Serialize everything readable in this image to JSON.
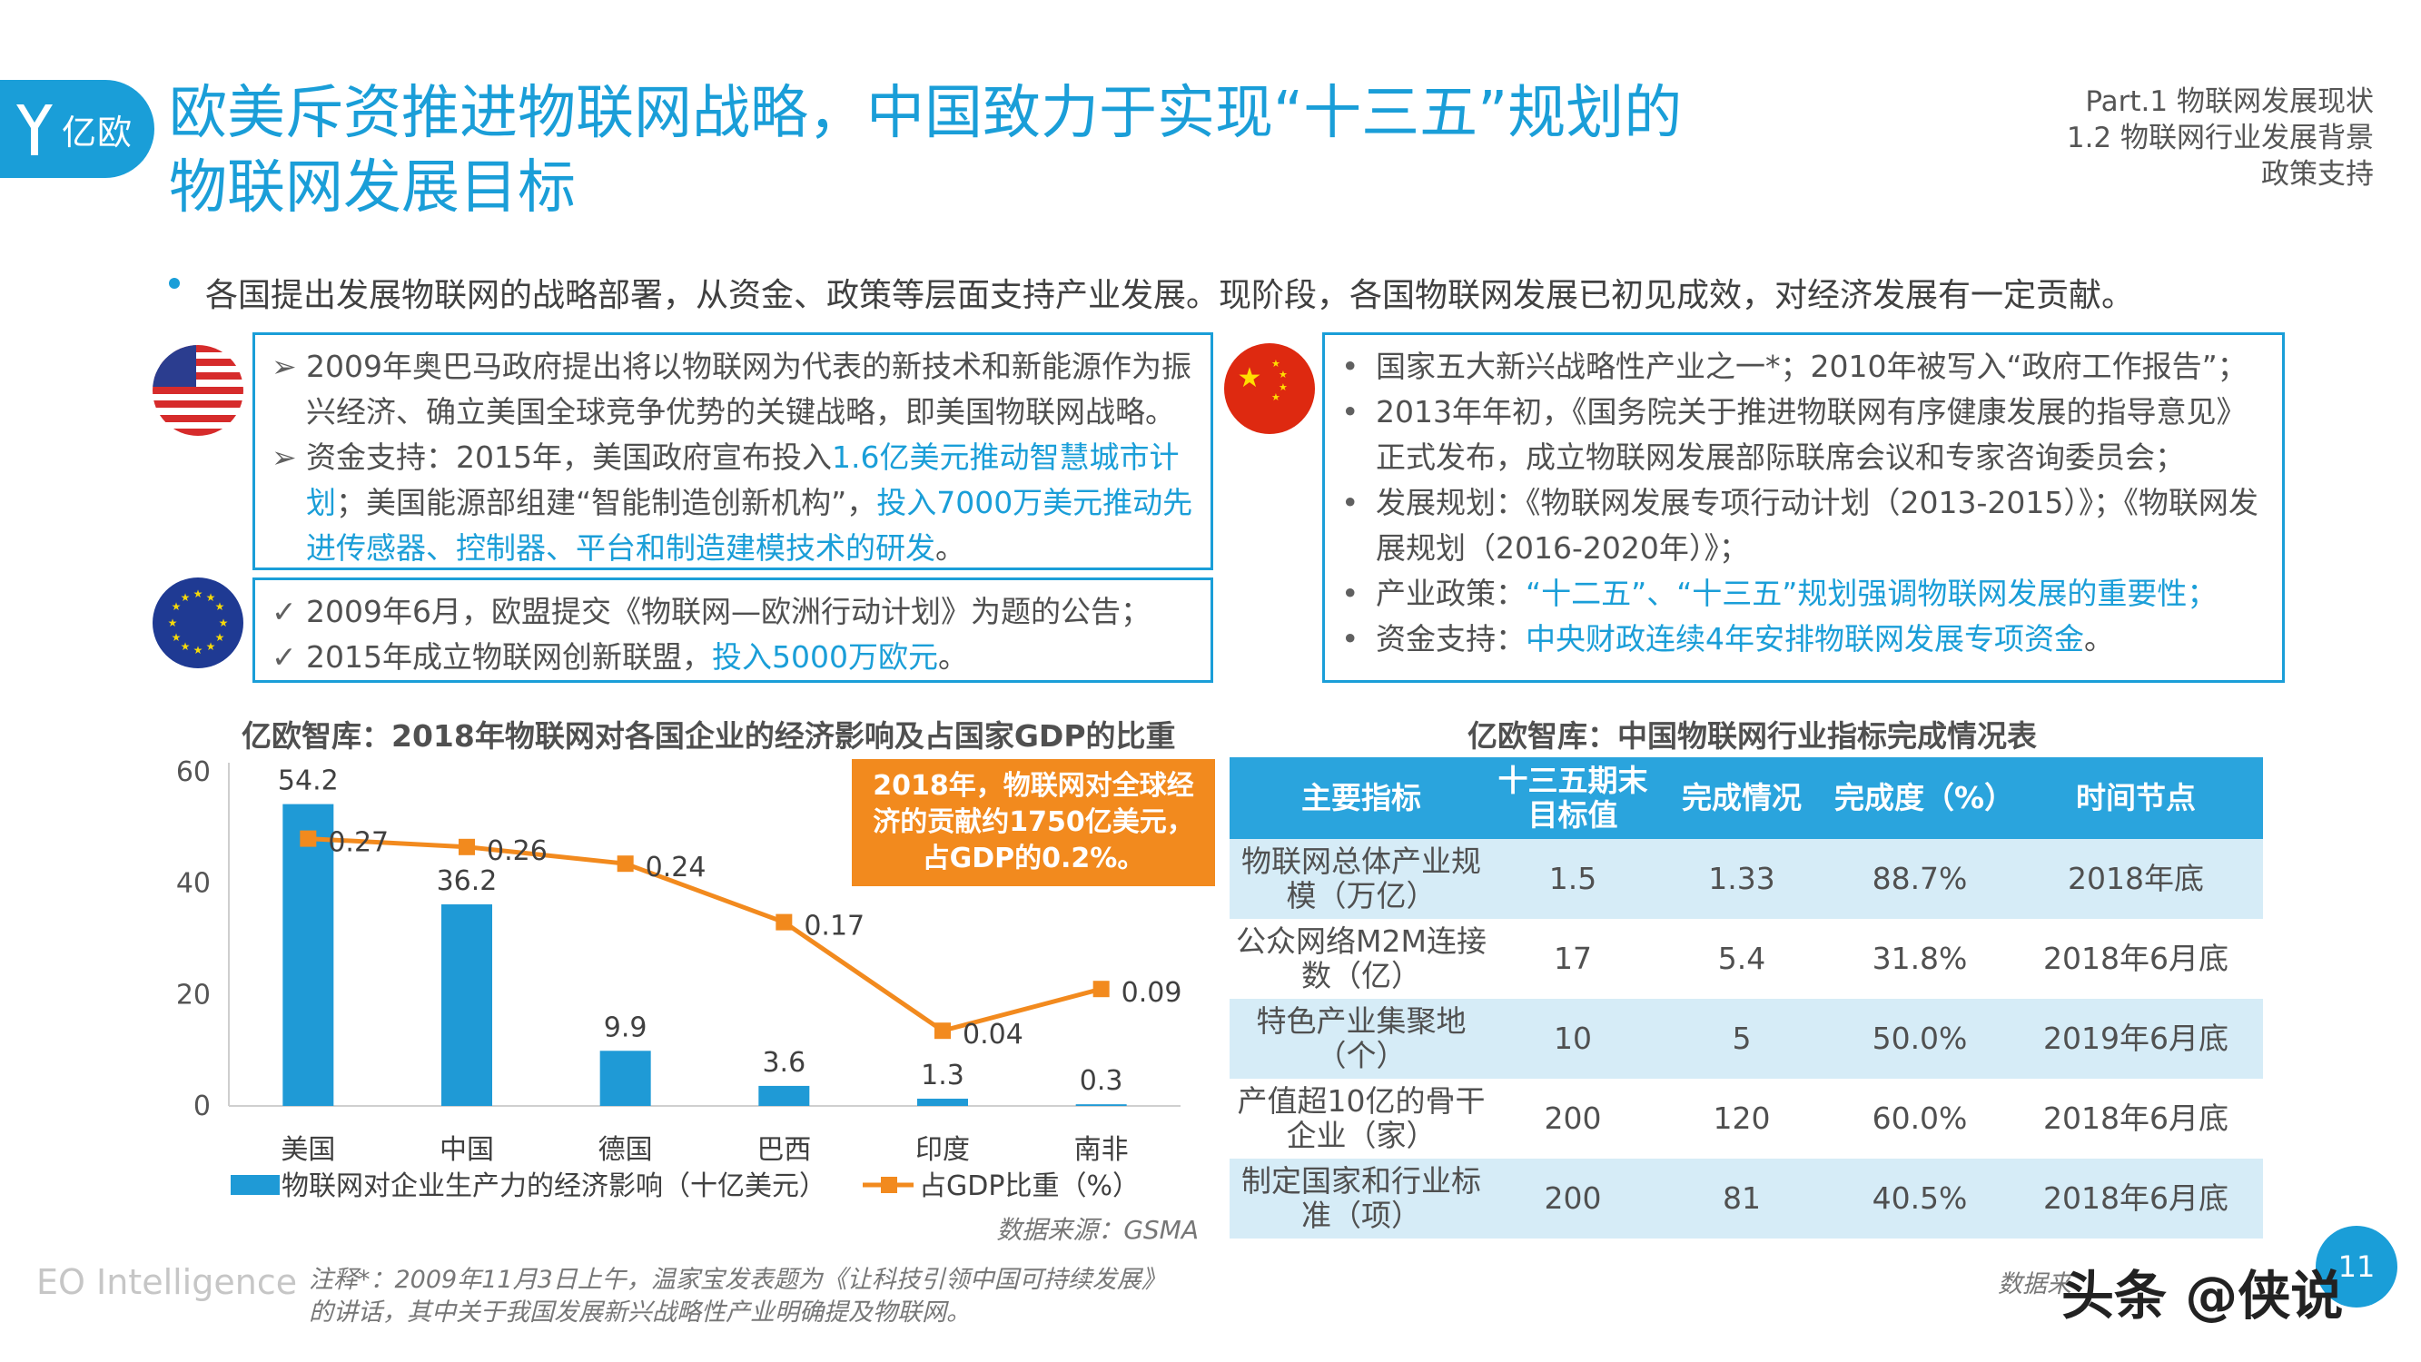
{
  "header": {
    "logo_text": "亿欧",
    "title_line1": "欧美斥资推进物联网战略，中国致力于实现“十三五”规划的",
    "title_line2": "物联网发展目标",
    "part_line1": "Part.1 物联网发展现状",
    "part_line2": "1.2 物联网行业发展背景",
    "part_line3": "政策支持"
  },
  "intro": "各国提出发展物联网的战略部署，从资金、政策等层面支持产业发展。现阶段，各国物联网发展已初见成效，对经济发展有一定贡献。",
  "us_box": {
    "item1": "2009年奥巴马政府提出将以物联网为代表的新技术和新能源作为振兴经济、确立美国全球竞争优势的关键战略，即美国物联网战略。",
    "item2_prefix": "资金支持：2015年，美国政府宣布投入",
    "item2_hl1": "1.6亿美元推动智慧城市计划",
    "item2_mid": "；美国能源部组建“智能制造创新机构”，",
    "item2_hl2": "投入7000万美元推动先进传感器、控制器、平台和制造建模技术的研发",
    "item2_end": "。"
  },
  "eu_box": {
    "item1": "2009年6月，欧盟提交《物联网—欧洲行动计划》为题的公告；",
    "item2_prefix": "2015年成立物联网创新联盟，",
    "item2_hl": "投入5000万欧元",
    "item2_end": "。"
  },
  "cn_box": {
    "item1": "国家五大新兴战略性产业之一*；2010年被写入“政府工作报告”；",
    "item2": "2013年年初，《国务院关于推进物联网有序健康发展的指导意见》正式发布，成立物联网发展部际联席会议和专家咨询委员会；",
    "item3": "发展规划：《物联网发展专项行动计划（2013-2015）》；《物联网发展规划（2016-2020年）》；",
    "item4_prefix": "产业政策：",
    "item4_hl": "“十二五”、“十三五”规划强调物联网发展的重要性；",
    "item5_prefix": "资金支持：",
    "item5_hl": "中央财政连续4年安排物联网发展专项资金",
    "item5_end": "。"
  },
  "chart_title": "亿欧智库：2018年物联网对各国企业的经济影响及占国家GDP的比重",
  "callout": "2018年，物联网对全球经济的贡献约1750亿美元，占GDP的0.2%。",
  "chart_data": {
    "type": "bar",
    "categories": [
      "美国",
      "中国",
      "德国",
      "巴西",
      "印度",
      "南非"
    ],
    "series": [
      {
        "name": "物联网对企业生产力的经济影响（十亿美元）",
        "kind": "bar",
        "values": [
          54.2,
          36.2,
          9.9,
          3.6,
          1.3,
          0.3
        ],
        "color": "#1f9ad6"
      },
      {
        "name": "占GDP比重（%）",
        "kind": "line",
        "values": [
          0.27,
          0.26,
          0.24,
          0.17,
          0.04,
          0.09
        ],
        "color": "#f28a1e"
      }
    ],
    "y_ticks": [
      0,
      20,
      40,
      60
    ],
    "ylim": [
      0,
      60
    ],
    "y2lim": [
      -0.05,
      0.35
    ],
    "source": "数据来源：GSMA"
  },
  "table": {
    "title": "亿欧智库：中国物联网行业指标完成情况表",
    "headers": [
      "主要指标",
      "十三五期末目标值",
      "完成情况",
      "完成度（%）",
      "时间节点"
    ],
    "rows": [
      [
        "物联网总体产业规模（万亿）",
        "1.5",
        "1.33",
        "88.7%",
        "2018年底"
      ],
      [
        "公众网络M2M连接数（亿）",
        "17",
        "5.4",
        "31.8%",
        "2018年6月底"
      ],
      [
        "特色产业集聚地（个）",
        "10",
        "5",
        "50.0%",
        "2019年6月底"
      ],
      [
        "产值超10亿的骨干企业（家）",
        "200",
        "120",
        "60.0%",
        "2018年6月底"
      ],
      [
        "制定国家和行业标准（项）",
        "200",
        "81",
        "40.5%",
        "2018年6月底"
      ]
    ]
  },
  "footer": {
    "brand": "EO Intelligence",
    "note_line1": "注释*：2009年11月3日上午，温家宝发表题为《让科技引领中国可持续发展》",
    "note_line2": "的讲话，其中关于我国发展新兴战略性产业明确提及物联网。",
    "source": "数据来",
    "page": "11",
    "watermark": "头条 @侠说"
  },
  "colors": {
    "accent": "#1a9ed8",
    "orange": "#f28a1e",
    "table_stripe": "#d6ecf7"
  }
}
